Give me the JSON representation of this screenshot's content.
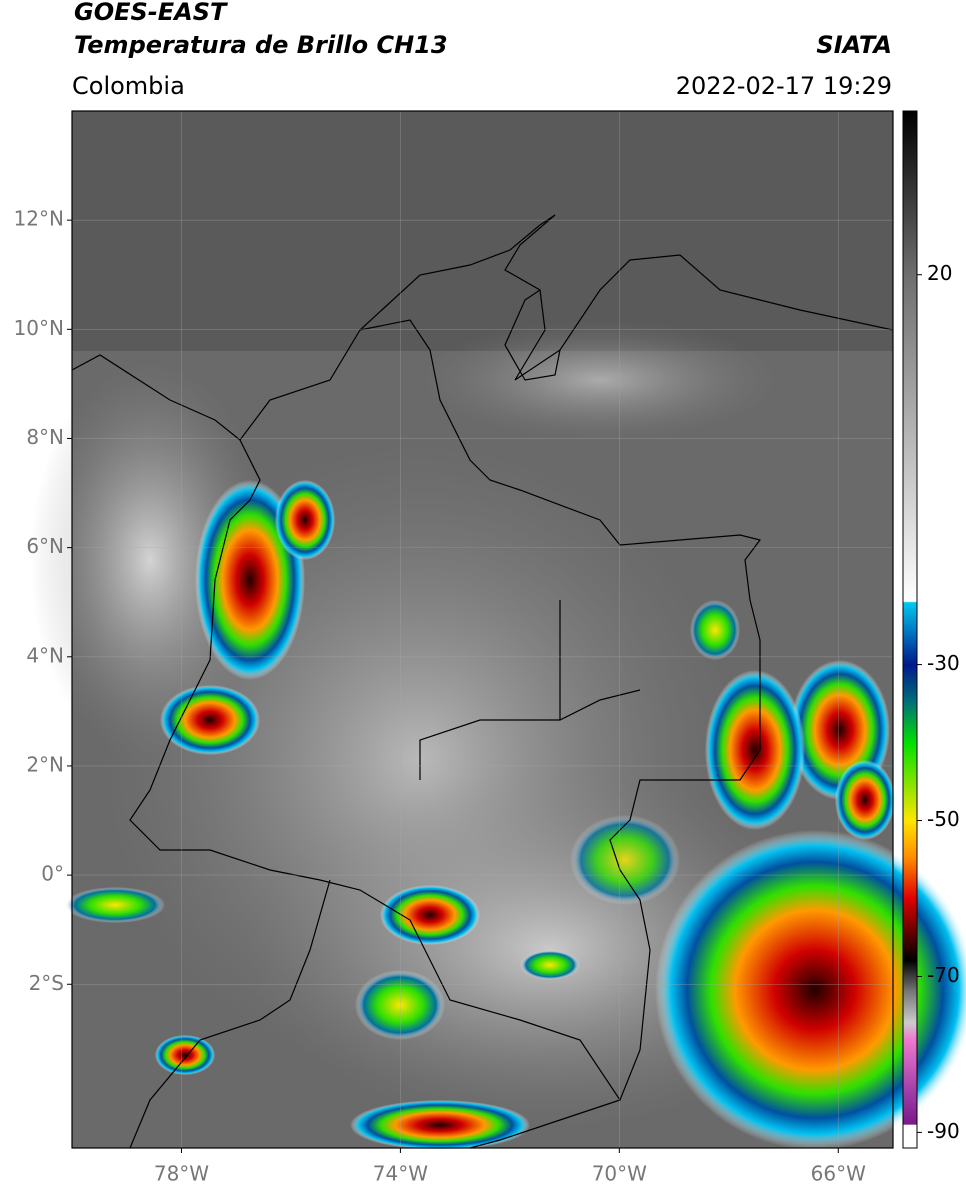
{
  "header": {
    "title_line1": "GOES-EAST",
    "title_line2": "Temperatura de Brillo CH13",
    "source": "SIATA",
    "region": "Colombia",
    "datetime": "2022-02-17 19:29"
  },
  "map": {
    "xlim": [
      -80,
      -65
    ],
    "ylim": [
      -5,
      14
    ],
    "xticks": [
      {
        "value": -78,
        "label": "78°W"
      },
      {
        "value": -74,
        "label": "74°W"
      },
      {
        "value": -70,
        "label": "70°W"
      },
      {
        "value": -66,
        "label": "66°W"
      }
    ],
    "yticks": [
      {
        "value": 12,
        "label": "12°N"
      },
      {
        "value": 10,
        "label": "10°N"
      },
      {
        "value": 8,
        "label": "8°N"
      },
      {
        "value": 6,
        "label": "6°N"
      },
      {
        "value": 4,
        "label": "4°N"
      },
      {
        "value": 2,
        "label": "2°N"
      },
      {
        "value": 0,
        "label": "0°"
      },
      {
        "value": -2,
        "label": "2°S"
      }
    ]
  },
  "colorbar": {
    "clim": [
      -92,
      41
    ],
    "ticks": [
      20,
      -30,
      -50,
      -70,
      -90
    ]
  }
}
